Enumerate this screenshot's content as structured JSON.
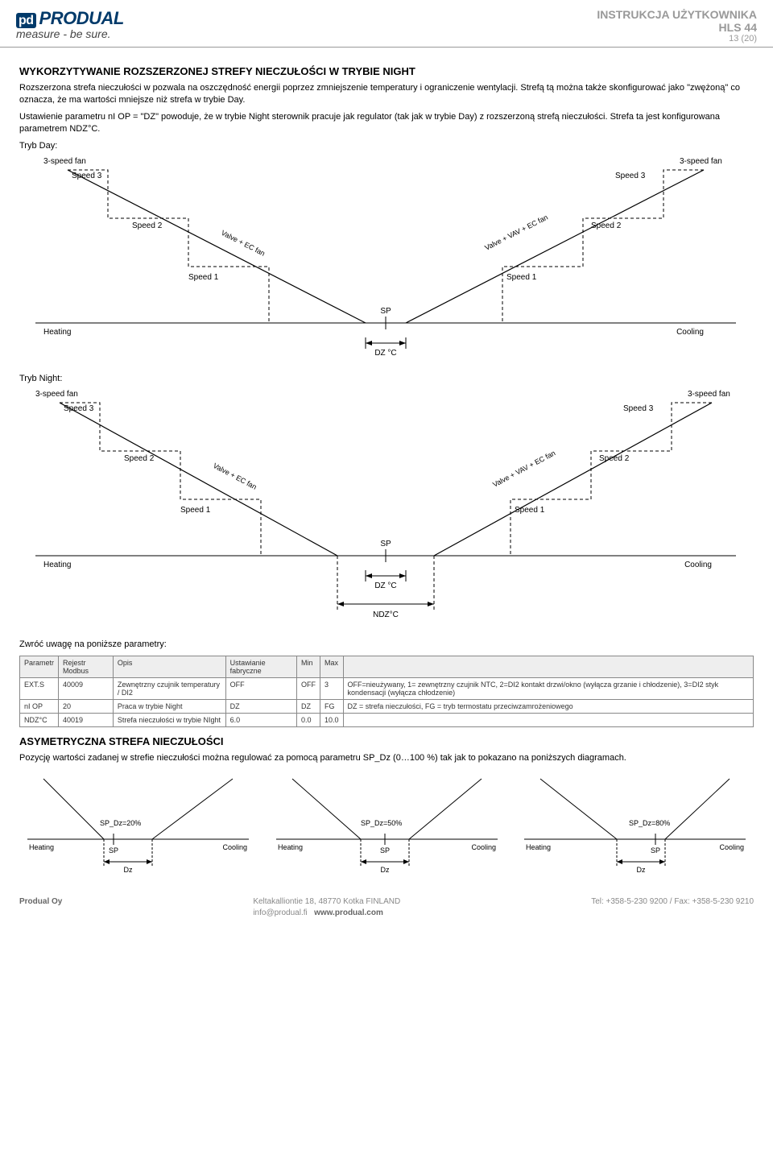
{
  "header": {
    "brand_pd": "pd",
    "brand": "PRODUAL",
    "tagline": "measure - be sure.",
    "doc_title": "INSTRUKCJA UŻYTKOWNIKA",
    "model": "HLS 44",
    "page": "13 (20)"
  },
  "section1": {
    "title": "WYKORZYTYWANIE ROZSZERZONEJ STREFY NIECZUŁOŚCI W TRYBIE NIGHT",
    "p1": "Rozszerzona strefa nieczułości w pozwala na oszczędność energii poprzez zmniejszenie temperatury i ograniczenie wentylacji. Strefą tą można także skonfigurować jako \"zwężoną\" co oznacza, że ma wartości mniejsze niż strefa w trybie Day.",
    "p2": "Ustawienie parametru nI OP = \"DZ\" powoduje, że w trybie Night sterownik pracuje jak regulator (tak jak w trybie Day) z rozszerzoną strefą nieczułości. Strefa ta jest konfigurowana parametrem NDZ°C.",
    "tryb_day": "Tryb Day:",
    "tryb_night": "Tryb Night:"
  },
  "chart": {
    "labels": {
      "three_speed": "3-speed fan",
      "speed3": "Speed 3",
      "speed2": "Speed 2",
      "speed1": "Speed 1",
      "valve_ec": "Valve + EC fan",
      "valve_vav": "Valve + VAV + EC fan",
      "heating": "Heating",
      "cooling": "Cooling",
      "sp": "SP",
      "dz": "DZ °C",
      "ndz": "NDZ°C"
    },
    "colors": {
      "solid": "#000000",
      "dashed": "#000000",
      "text": "#000000"
    },
    "font_size": 10
  },
  "params_intro": "Zwróć uwagę na poniższe parametry:",
  "table": {
    "columns": [
      "Parametr",
      "Rejestr Modbus",
      "Opis",
      "Ustawianie fabryczne",
      "Min",
      "Max",
      ""
    ],
    "rows": [
      [
        "EXT.S",
        "40009",
        "Zewnętrzny czujnik temperatury / DI2",
        "OFF",
        "OFF",
        "3",
        "OFF=nieużywany, 1= zewnętrzny czujnik NTC, 2=DI2 kontakt drzwi/okno (wyłącza grzanie i chłodzenie), 3=DI2 styk kondensacji (wyłącza chłodzenie)"
      ],
      [
        "nI OP",
        "20",
        "Praca w trybie Night",
        "DZ",
        "DZ",
        "FG",
        "DZ = strefa nieczułości, FG = tryb termostatu przeciwzamrożeniowego"
      ],
      [
        "NDZ°C",
        "40019",
        "Strefa nieczułości w trybie NIght",
        "6.0",
        "0.0",
        "10.0",
        ""
      ]
    ]
  },
  "section2": {
    "title": "ASYMETRYCZNA STREFA NIECZUŁOŚCI",
    "p1": "Pozycję wartości zadanej w strefie nieczułości można regulować za pomocą parametru SP_Dz (0…100 %) tak jak to pokazano na poniższych diagramach."
  },
  "mini": {
    "sp_dz_20": "SP_Dz=20%",
    "sp_dz_50": "SP_Dz=50%",
    "sp_dz_80": "SP_Dz=80%",
    "heating": "Heating",
    "cooling": "Cooling",
    "sp": "SP",
    "dz": "Dz"
  },
  "footer": {
    "company": "Produal Oy",
    "addr1": "Keltakalliontie 18, 48770 Kotka FINLAND",
    "addr2": "info@produal.fi",
    "addr3": "www.produal.com",
    "tel": "Tel: +358-5-230 9200 / Fax: +358-5-230 9210"
  }
}
